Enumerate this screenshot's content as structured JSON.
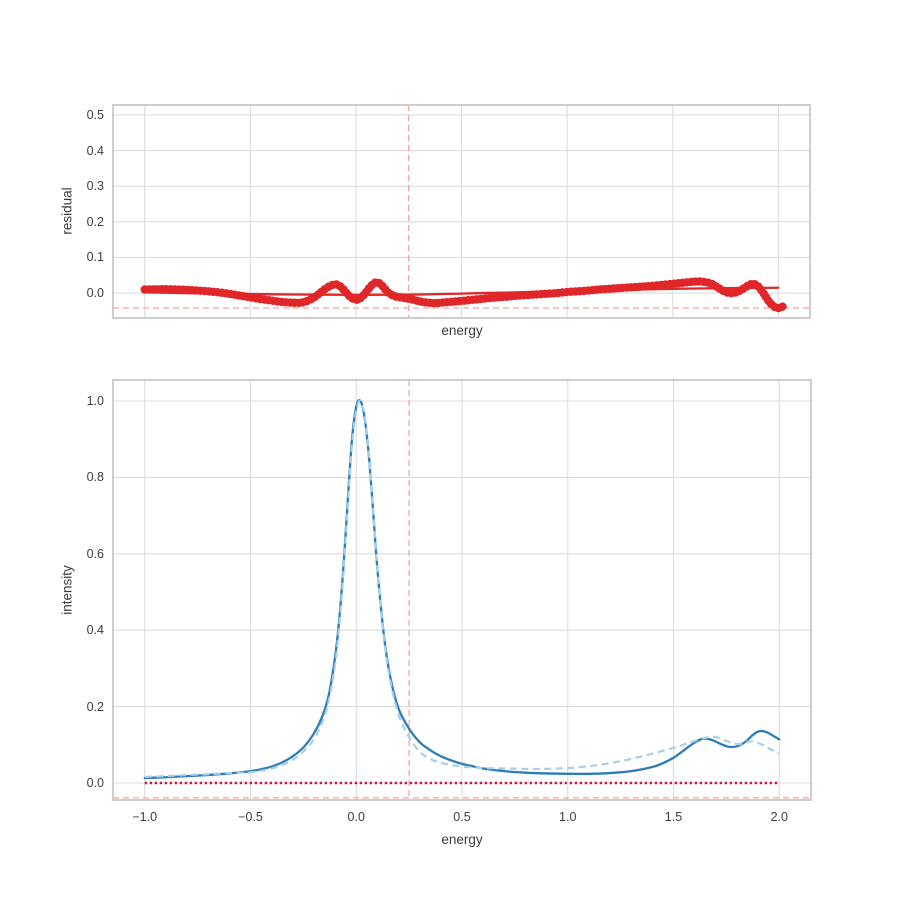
{
  "figure": {
    "background": "#ffffff",
    "grid_color": "#dcdcdc",
    "spine_color": "#c9c9c9",
    "text_color": "#3d3d3d"
  },
  "chart_data": [
    {
      "type": "scatter",
      "title": "",
      "xlabel": "energy",
      "ylabel": "residual",
      "xlim": [
        -1.15,
        2.15
      ],
      "ylim": [
        -0.07,
        0.528
      ],
      "grid": true,
      "legend": "none",
      "xtick_values": [
        -1.0,
        -0.5,
        0.0,
        0.5,
        1.0,
        1.5,
        2.0
      ],
      "xtick_labels": [],
      "ytick_values": [
        0.0,
        0.1,
        0.2,
        0.3,
        0.4,
        0.5
      ],
      "ytick_labels": [
        "0.0",
        "0.1",
        "0.2",
        "0.3",
        "0.4",
        "0.5"
      ],
      "vline": {
        "x": 0.25,
        "color": "#fba29c",
        "style": "dashed"
      },
      "hline": {
        "y": -0.042,
        "color": "#fba29c",
        "style": "dashed"
      },
      "series": [
        {
          "name": "residual-fit-line",
          "style": "solid",
          "color": "#e02628",
          "width": 2.3,
          "points": [
            [
              -1.0,
              0.002
            ],
            [
              -0.6,
              -0.002
            ],
            [
              -0.3,
              -0.004
            ],
            [
              0.0,
              -0.005
            ],
            [
              0.3,
              -0.004
            ],
            [
              0.6,
              0.0
            ],
            [
              0.9,
              0.004
            ],
            [
              1.2,
              0.008
            ],
            [
              1.5,
              0.012
            ],
            [
              1.8,
              0.014
            ],
            [
              2.0,
              0.015
            ]
          ]
        },
        {
          "name": "residual-data-markers",
          "style": "markers",
          "color": "#e02628",
          "width": 7,
          "points": [
            [
              -1.0,
              0.01
            ],
            [
              -0.95,
              0.0105
            ],
            [
              -0.9,
              0.011
            ],
            [
              -0.85,
              0.01
            ],
            [
              -0.8,
              0.009
            ],
            [
              -0.75,
              0.007
            ],
            [
              -0.7,
              0.005
            ],
            [
              -0.65,
              0.002
            ],
            [
              -0.6,
              -0.002
            ],
            [
              -0.55,
              -0.007
            ],
            [
              -0.5,
              -0.012
            ],
            [
              -0.45,
              -0.017
            ],
            [
              -0.4,
              -0.021
            ],
            [
              -0.35,
              -0.025
            ],
            [
              -0.3,
              -0.027
            ],
            [
              -0.26,
              -0.027
            ],
            [
              -0.23,
              -0.022
            ],
            [
              -0.2,
              -0.013
            ],
            [
              -0.17,
              0.0
            ],
            [
              -0.14,
              0.014
            ],
            [
              -0.11,
              0.023
            ],
            [
              -0.09,
              0.024
            ],
            [
              -0.07,
              0.017
            ],
            [
              -0.05,
              0.004
            ],
            [
              -0.03,
              -0.009
            ],
            [
              -0.01,
              -0.017
            ],
            [
              0.01,
              -0.018
            ],
            [
              0.03,
              -0.01
            ],
            [
              0.05,
              0.004
            ],
            [
              0.07,
              0.019
            ],
            [
              0.09,
              0.029
            ],
            [
              0.11,
              0.028
            ],
            [
              0.13,
              0.017
            ],
            [
              0.15,
              0.003
            ],
            [
              0.18,
              -0.008
            ],
            [
              0.22,
              -0.013
            ],
            [
              0.26,
              -0.017
            ],
            [
              0.3,
              -0.023
            ],
            [
              0.34,
              -0.027
            ],
            [
              0.38,
              -0.028
            ],
            [
              0.42,
              -0.026
            ],
            [
              0.46,
              -0.024
            ],
            [
              0.5,
              -0.022
            ],
            [
              0.55,
              -0.019
            ],
            [
              0.6,
              -0.016
            ],
            [
              0.65,
              -0.013
            ],
            [
              0.7,
              -0.011
            ],
            [
              0.75,
              -0.008
            ],
            [
              0.8,
              -0.006
            ],
            [
              0.85,
              -0.004
            ],
            [
              0.9,
              -0.002
            ],
            [
              0.95,
              0.0
            ],
            [
              1.0,
              0.003
            ],
            [
              1.05,
              0.005
            ],
            [
              1.1,
              0.007
            ],
            [
              1.15,
              0.01
            ],
            [
              1.2,
              0.012
            ],
            [
              1.25,
              0.014
            ],
            [
              1.3,
              0.016
            ],
            [
              1.35,
              0.018
            ],
            [
              1.4,
              0.02
            ],
            [
              1.45,
              0.023
            ],
            [
              1.5,
              0.026
            ],
            [
              1.55,
              0.029
            ],
            [
              1.6,
              0.032
            ],
            [
              1.64,
              0.032
            ],
            [
              1.68,
              0.027
            ],
            [
              1.71,
              0.017
            ],
            [
              1.74,
              0.006
            ],
            [
              1.77,
              0.0
            ],
            [
              1.8,
              0.002
            ],
            [
              1.83,
              0.011
            ],
            [
              1.86,
              0.022
            ],
            [
              1.88,
              0.026
            ],
            [
              1.9,
              0.021
            ],
            [
              1.92,
              0.008
            ],
            [
              1.94,
              -0.01
            ],
            [
              1.96,
              -0.027
            ],
            [
              1.98,
              -0.038
            ],
            [
              2.0,
              -0.042
            ],
            [
              2.02,
              -0.038
            ]
          ]
        }
      ]
    },
    {
      "type": "line",
      "title": "",
      "xlabel": "energy",
      "ylabel": "intensity",
      "xlim": [
        -1.15,
        2.15
      ],
      "ylim": [
        -0.0445,
        1.055
      ],
      "grid": true,
      "legend": "none",
      "xtick_values": [
        -1.0,
        -0.5,
        0.0,
        0.5,
        1.0,
        1.5,
        2.0
      ],
      "xtick_labels": [
        "−1.0",
        "−0.5",
        "0.0",
        "0.5",
        "1.0",
        "1.5",
        "2.0"
      ],
      "ytick_values": [
        0.0,
        0.2,
        0.4,
        0.6,
        0.8,
        1.0
      ],
      "ytick_labels": [
        "0.0",
        "0.2",
        "0.4",
        "0.6",
        "0.8",
        "1.0"
      ],
      "vline": {
        "x": 0.25,
        "color": "#fba29c",
        "style": "dashed"
      },
      "hline": {
        "y": -0.039,
        "color": "#fba29c",
        "style": "dashed"
      },
      "series": [
        {
          "name": "zero-baseline",
          "style": "dotted",
          "color": "#cf1444",
          "width": 2.5,
          "points": [
            [
              -1.0,
              0.0
            ],
            [
              2.0,
              0.0
            ]
          ]
        },
        {
          "name": "intensity-solid-curve",
          "style": "solid",
          "color": "#2d7cb8",
          "width": 2.3,
          "points": [
            [
              -1.0,
              0.013
            ],
            [
              -0.9,
              0.015
            ],
            [
              -0.8,
              0.018
            ],
            [
              -0.7,
              0.021
            ],
            [
              -0.6,
              0.025
            ],
            [
              -0.5,
              0.031
            ],
            [
              -0.45,
              0.036
            ],
            [
              -0.4,
              0.043
            ],
            [
              -0.35,
              0.054
            ],
            [
              -0.3,
              0.07
            ],
            [
              -0.25,
              0.093
            ],
            [
              -0.2,
              0.13
            ],
            [
              -0.16,
              0.175
            ],
            [
              -0.13,
              0.23
            ],
            [
              -0.1,
              0.33
            ],
            [
              -0.08,
              0.43
            ],
            [
              -0.06,
              0.57
            ],
            [
              -0.04,
              0.74
            ],
            [
              -0.02,
              0.9
            ],
            [
              0.0,
              0.985
            ],
            [
              0.02,
              1.0
            ],
            [
              0.04,
              0.955
            ],
            [
              0.06,
              0.855
            ],
            [
              0.08,
              0.71
            ],
            [
              0.1,
              0.56
            ],
            [
              0.13,
              0.39
            ],
            [
              0.16,
              0.28
            ],
            [
              0.2,
              0.195
            ],
            [
              0.25,
              0.142
            ],
            [
              0.3,
              0.107
            ],
            [
              0.35,
              0.086
            ],
            [
              0.4,
              0.07
            ],
            [
              0.45,
              0.059
            ],
            [
              0.5,
              0.05
            ],
            [
              0.55,
              0.044
            ],
            [
              0.6,
              0.038
            ],
            [
              0.7,
              0.031
            ],
            [
              0.8,
              0.027
            ],
            [
              0.9,
              0.025
            ],
            [
              1.0,
              0.024
            ],
            [
              1.1,
              0.024
            ],
            [
              1.2,
              0.026
            ],
            [
              1.3,
              0.031
            ],
            [
              1.4,
              0.042
            ],
            [
              1.45,
              0.052
            ],
            [
              1.5,
              0.066
            ],
            [
              1.55,
              0.086
            ],
            [
              1.6,
              0.106
            ],
            [
              1.64,
              0.116
            ],
            [
              1.68,
              0.113
            ],
            [
              1.72,
              0.103
            ],
            [
              1.76,
              0.095
            ],
            [
              1.8,
              0.096
            ],
            [
              1.84,
              0.108
            ],
            [
              1.88,
              0.128
            ],
            [
              1.91,
              0.136
            ],
            [
              1.94,
              0.133
            ],
            [
              1.97,
              0.124
            ],
            [
              2.0,
              0.114
            ]
          ]
        },
        {
          "name": "intensity-dashed-curve",
          "style": "dashed",
          "color": "#a9cfe6",
          "width": 2.2,
          "points": [
            [
              -1.0,
              0.016
            ],
            [
              -0.9,
              0.018
            ],
            [
              -0.8,
              0.021
            ],
            [
              -0.7,
              0.023
            ],
            [
              -0.6,
              0.026
            ],
            [
              -0.5,
              0.028
            ],
            [
              -0.45,
              0.032
            ],
            [
              -0.4,
              0.038
            ],
            [
              -0.35,
              0.047
            ],
            [
              -0.3,
              0.061
            ],
            [
              -0.25,
              0.082
            ],
            [
              -0.2,
              0.115
            ],
            [
              -0.16,
              0.16
            ],
            [
              -0.13,
              0.215
            ],
            [
              -0.1,
              0.31
            ],
            [
              -0.08,
              0.415
            ],
            [
              -0.06,
              0.555
            ],
            [
              -0.04,
              0.725
            ],
            [
              -0.02,
              0.885
            ],
            [
              0.0,
              0.975
            ],
            [
              0.02,
              1.0
            ],
            [
              0.04,
              0.96
            ],
            [
              0.06,
              0.86
            ],
            [
              0.08,
              0.715
            ],
            [
              0.1,
              0.56
            ],
            [
              0.13,
              0.385
            ],
            [
              0.16,
              0.27
            ],
            [
              0.2,
              0.18
            ],
            [
              0.25,
              0.12
            ],
            [
              0.3,
              0.082
            ],
            [
              0.35,
              0.063
            ],
            [
              0.4,
              0.053
            ],
            [
              0.45,
              0.047
            ],
            [
              0.5,
              0.043
            ],
            [
              0.55,
              0.041
            ],
            [
              0.6,
              0.039
            ],
            [
              0.7,
              0.038
            ],
            [
              0.8,
              0.037
            ],
            [
              0.9,
              0.037
            ],
            [
              1.0,
              0.039
            ],
            [
              1.1,
              0.044
            ],
            [
              1.2,
              0.052
            ],
            [
              1.3,
              0.063
            ],
            [
              1.4,
              0.077
            ],
            [
              1.5,
              0.092
            ],
            [
              1.55,
              0.101
            ],
            [
              1.6,
              0.11
            ],
            [
              1.65,
              0.118
            ],
            [
              1.69,
              0.121
            ],
            [
              1.73,
              0.115
            ],
            [
              1.77,
              0.106
            ],
            [
              1.81,
              0.102
            ],
            [
              1.85,
              0.108
            ],
            [
              1.88,
              0.108
            ],
            [
              1.92,
              0.1
            ],
            [
              1.96,
              0.088
            ],
            [
              2.0,
              0.076
            ]
          ]
        }
      ]
    }
  ]
}
